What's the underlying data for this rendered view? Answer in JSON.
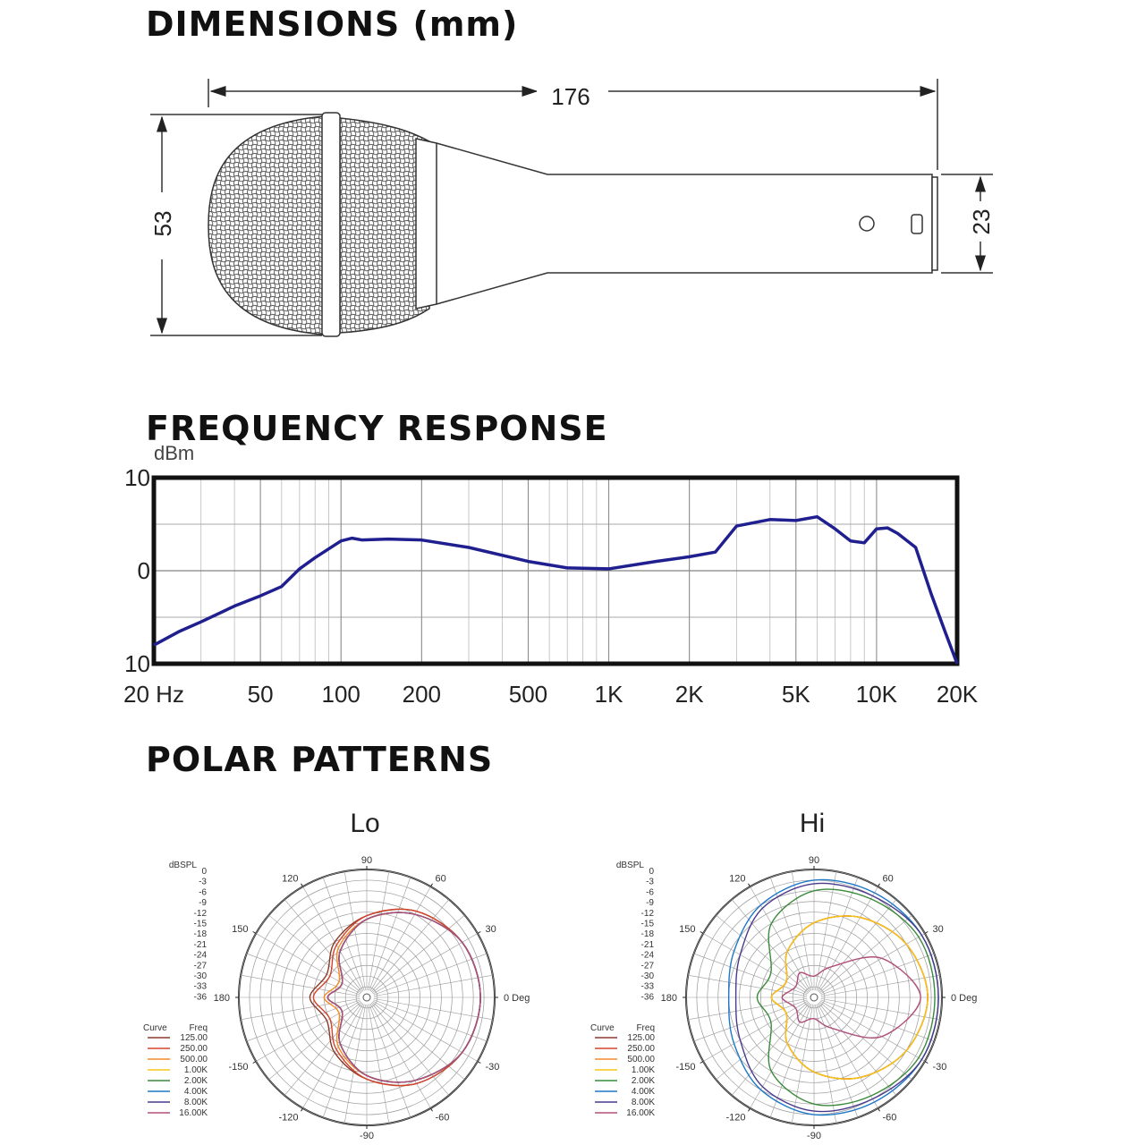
{
  "sections": {
    "dimensions_title": "DIMENSIONS (mm)",
    "frequency_title": "FREQUENCY RESPONSE",
    "polar_title": "POLAR PATTERNS"
  },
  "dimensions": {
    "length": 176,
    "head_diameter": 53,
    "handle_diameter": 23
  },
  "frequency_response": {
    "type": "line",
    "y_label": "dBm",
    "color": "#1f1f8f",
    "log_x": true,
    "x": [
      20,
      25,
      30,
      40,
      50,
      60,
      70,
      80,
      100,
      110,
      120,
      150,
      200,
      300,
      500,
      700,
      1000,
      1500,
      2000,
      2500,
      3000,
      4000,
      5000,
      6000,
      7000,
      8000,
      9000,
      10000,
      11000,
      12000,
      14000,
      16000,
      18000,
      20000
    ],
    "values": [
      -8,
      -6.5,
      -5.5,
      -3.8,
      -2.7,
      -1.7,
      0.2,
      1.4,
      3.2,
      3.5,
      3.3,
      3.4,
      3.3,
      2.5,
      1.0,
      0.3,
      0.2,
      1.0,
      1.5,
      2.0,
      4.8,
      5.5,
      5.4,
      5.8,
      4.5,
      3.2,
      3.0,
      4.5,
      4.6,
      4.0,
      2.5,
      -2.5,
      -6.5,
      -10
    ],
    "xlim": [
      20,
      20000
    ],
    "ylim": [
      -10,
      10
    ],
    "xticks": [
      {
        "value": 20,
        "label": "20 Hz"
      },
      50,
      100,
      200,
      500,
      {
        "value": 1000,
        "label": "1K"
      },
      {
        "value": 2000,
        "label": "2K"
      },
      {
        "value": 5000,
        "label": "5K"
      },
      {
        "value": 10000,
        "label": "10K"
      },
      {
        "value": 20000,
        "label": "20K"
      }
    ],
    "yticks": [
      {
        "value": -10,
        "label": "10"
      },
      0,
      10
    ]
  },
  "polar_patterns": [
    {
      "type": "polar",
      "title": "Lo",
      "db_label": "dBSPL",
      "rlim": [
        -36,
        0
      ],
      "db_ticks": [
        0,
        -3,
        -6,
        -9,
        -12,
        -15,
        -18,
        -21,
        -24,
        -27,
        -30,
        -33,
        -36
      ],
      "angle_ticks": [
        90,
        60,
        30,
        {
          "value": 0,
          "label": "0 Deg"
        },
        -30,
        -60,
        -90,
        -120,
        -150,
        180,
        150,
        120
      ],
      "angles": [
        0,
        30,
        60,
        90,
        120,
        150,
        180,
        210,
        240,
        270,
        300,
        330
      ],
      "curve_header": "Curve",
      "freq_header": "Freq",
      "series": [
        {
          "name": "125.00",
          "color": "#8b3a2a",
          "values": [
            -4,
            -5,
            -8,
            -13,
            -18,
            -23,
            -20,
            -23,
            -18,
            -13,
            -8,
            -5
          ]
        },
        {
          "name": "250.00",
          "color": "#d2452b",
          "values": [
            -4,
            -5,
            -8,
            -13,
            -19,
            -24,
            -21,
            -24,
            -19,
            -13,
            -8,
            -5
          ]
        },
        {
          "name": "500.00",
          "color": "#f28c28",
          "values": [
            -4,
            -5,
            -9,
            -14,
            -20,
            -27,
            -24,
            -27,
            -20,
            -14,
            -9,
            -5
          ]
        },
        {
          "name": "1.00K",
          "color": "#f5c518",
          "values": [
            -4,
            -5,
            -9,
            -14,
            -21,
            -28,
            -25,
            -28,
            -21,
            -14,
            -9,
            -5
          ]
        },
        {
          "name": "2.00K",
          "color": "#3a8a3a",
          "values": [
            -4,
            -5,
            -9,
            -14,
            -21,
            -28,
            -25,
            -28,
            -21,
            -14,
            -9,
            -5
          ]
        },
        {
          "name": "4.00K",
          "color": "#1e78c8",
          "values": [
            -4,
            -5,
            -9,
            -14,
            -21,
            -28,
            -25,
            -28,
            -21,
            -14,
            -9,
            -5
          ]
        },
        {
          "name": "8.00K",
          "color": "#4a3a8a",
          "values": [
            -4,
            -5,
            -9,
            -14,
            -21,
            -28,
            -25,
            -28,
            -21,
            -14,
            -9,
            -5
          ]
        },
        {
          "name": "16.00K",
          "color": "#b0507a",
          "values": [
            -4,
            -5,
            -9,
            -14,
            -21,
            -28,
            -25,
            -28,
            -21,
            -14,
            -9,
            -5
          ]
        }
      ]
    },
    {
      "type": "polar",
      "title": "Hi",
      "db_label": "dBSPL",
      "rlim": [
        -36,
        0
      ],
      "db_ticks": [
        0,
        -3,
        -6,
        -9,
        -12,
        -15,
        -18,
        -21,
        -24,
        -27,
        -30,
        -33,
        -36
      ],
      "angle_ticks": [
        90,
        60,
        30,
        {
          "value": 0,
          "label": "0 Deg"
        },
        -30,
        -60,
        -90,
        -120,
        -150,
        180,
        150,
        120
      ],
      "angles": [
        0,
        30,
        60,
        90,
        120,
        150,
        180,
        210,
        240,
        270,
        300,
        330
      ],
      "curve_header": "Curve",
      "freq_header": "Freq",
      "series": [
        {
          "name": "125.00",
          "color": "#8b3a2a",
          "values": [
            -4,
            -6,
            -10,
            -15,
            -21,
            -27,
            -24,
            -27,
            -21,
            -15,
            -10,
            -6
          ]
        },
        {
          "name": "250.00",
          "color": "#d2452b",
          "values": [
            -4,
            -6,
            -10,
            -15,
            -21,
            -27,
            -24,
            -27,
            -21,
            -15,
            -10,
            -6
          ]
        },
        {
          "name": "500.00",
          "color": "#f28c28",
          "values": [
            -4,
            -6,
            -10,
            -15,
            -21,
            -27,
            -24,
            -27,
            -21,
            -15,
            -10,
            -6
          ]
        },
        {
          "name": "1.00K",
          "color": "#f5c518",
          "values": [
            -4,
            -6,
            -10,
            -15,
            -21,
            -27,
            -24,
            -27,
            -21,
            -15,
            -10,
            -6
          ]
        },
        {
          "name": "2.00K",
          "color": "#3a8a3a",
          "values": [
            -2,
            -2,
            -4,
            -6,
            -12,
            -22,
            -20,
            -22,
            -12,
            -6,
            -4,
            -2
          ]
        },
        {
          "name": "4.00K",
          "color": "#1e78c8",
          "values": [
            -1,
            -1,
            -2,
            -3,
            -6,
            -10,
            -12,
            -10,
            -6,
            -3,
            -2,
            -1
          ]
        },
        {
          "name": "8.00K",
          "color": "#4a3a8a",
          "values": [
            -1,
            -1,
            -3,
            -4,
            -7,
            -12,
            -14,
            -12,
            -7,
            -4,
            -3,
            -1
          ]
        },
        {
          "name": "16.00K",
          "color": "#b0507a",
          "values": [
            -6,
            -14,
            -26,
            -30,
            -28,
            -30,
            -27,
            -30,
            -28,
            -30,
            -26,
            -14
          ]
        }
      ]
    }
  ]
}
